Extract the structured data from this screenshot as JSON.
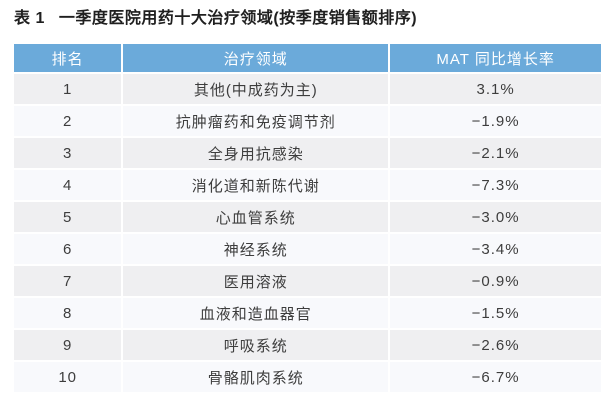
{
  "title": {
    "prefix": "表 1",
    "text": "一季度医院用药十大治疗领域(按季度销售额排序)"
  },
  "colors": {
    "page_bg": "#ffffff",
    "header_bg": "#6baada",
    "header_text": "#ffffff",
    "row_odd_bg": "#efeff1",
    "row_even_bg": "#f8f9fc",
    "body_text": "#3d3d3d",
    "caption_text": "#1f1f1f"
  },
  "table": {
    "columns": [
      "排名",
      "治疗领域",
      "MAT 同比增长率"
    ],
    "rows": [
      {
        "rank": "1",
        "area": "其他(中成药为主)",
        "growth": "3.1%"
      },
      {
        "rank": "2",
        "area": "抗肿瘤药和免疫调节剂",
        "growth": "−1.9%"
      },
      {
        "rank": "3",
        "area": "全身用抗感染",
        "growth": "−2.1%"
      },
      {
        "rank": "4",
        "area": "消化道和新陈代谢",
        "growth": "−7.3%"
      },
      {
        "rank": "5",
        "area": "心血管系统",
        "growth": "−3.0%"
      },
      {
        "rank": "6",
        "area": "神经系统",
        "growth": "−3.4%"
      },
      {
        "rank": "7",
        "area": "医用溶液",
        "growth": "−0.9%"
      },
      {
        "rank": "8",
        "area": "血液和造血器官",
        "growth": "−1.5%"
      },
      {
        "rank": "9",
        "area": "呼吸系统",
        "growth": "−2.6%"
      },
      {
        "rank": "10",
        "area": "骨骼肌肉系统",
        "growth": "−6.7%"
      }
    ]
  },
  "chart_data": {
    "type": "table",
    "title": "表 1 一季度医院用药十大治疗领域(按季度销售额排序)",
    "columns": [
      "排名",
      "治疗领域",
      "MAT 同比增长率"
    ],
    "categories": [
      "其他(中成药为主)",
      "抗肿瘤药和免疫调节剂",
      "全身用抗感染",
      "消化道和新陈代谢",
      "心血管系统",
      "神经系统",
      "医用溶液",
      "血液和造血器官",
      "呼吸系统",
      "骨骼肌肉系统"
    ],
    "series": [
      {
        "name": "MAT 同比增长率 (%)",
        "values": [
          3.1,
          -1.9,
          -2.1,
          -7.3,
          -3.0,
          -3.4,
          -0.9,
          -1.5,
          -2.6,
          -6.7
        ]
      }
    ],
    "layout_hints": {
      "header_fill": "#6baada",
      "striped_rows": true,
      "grid": "white 2px separators",
      "sort": "按季度销售额排序"
    }
  }
}
